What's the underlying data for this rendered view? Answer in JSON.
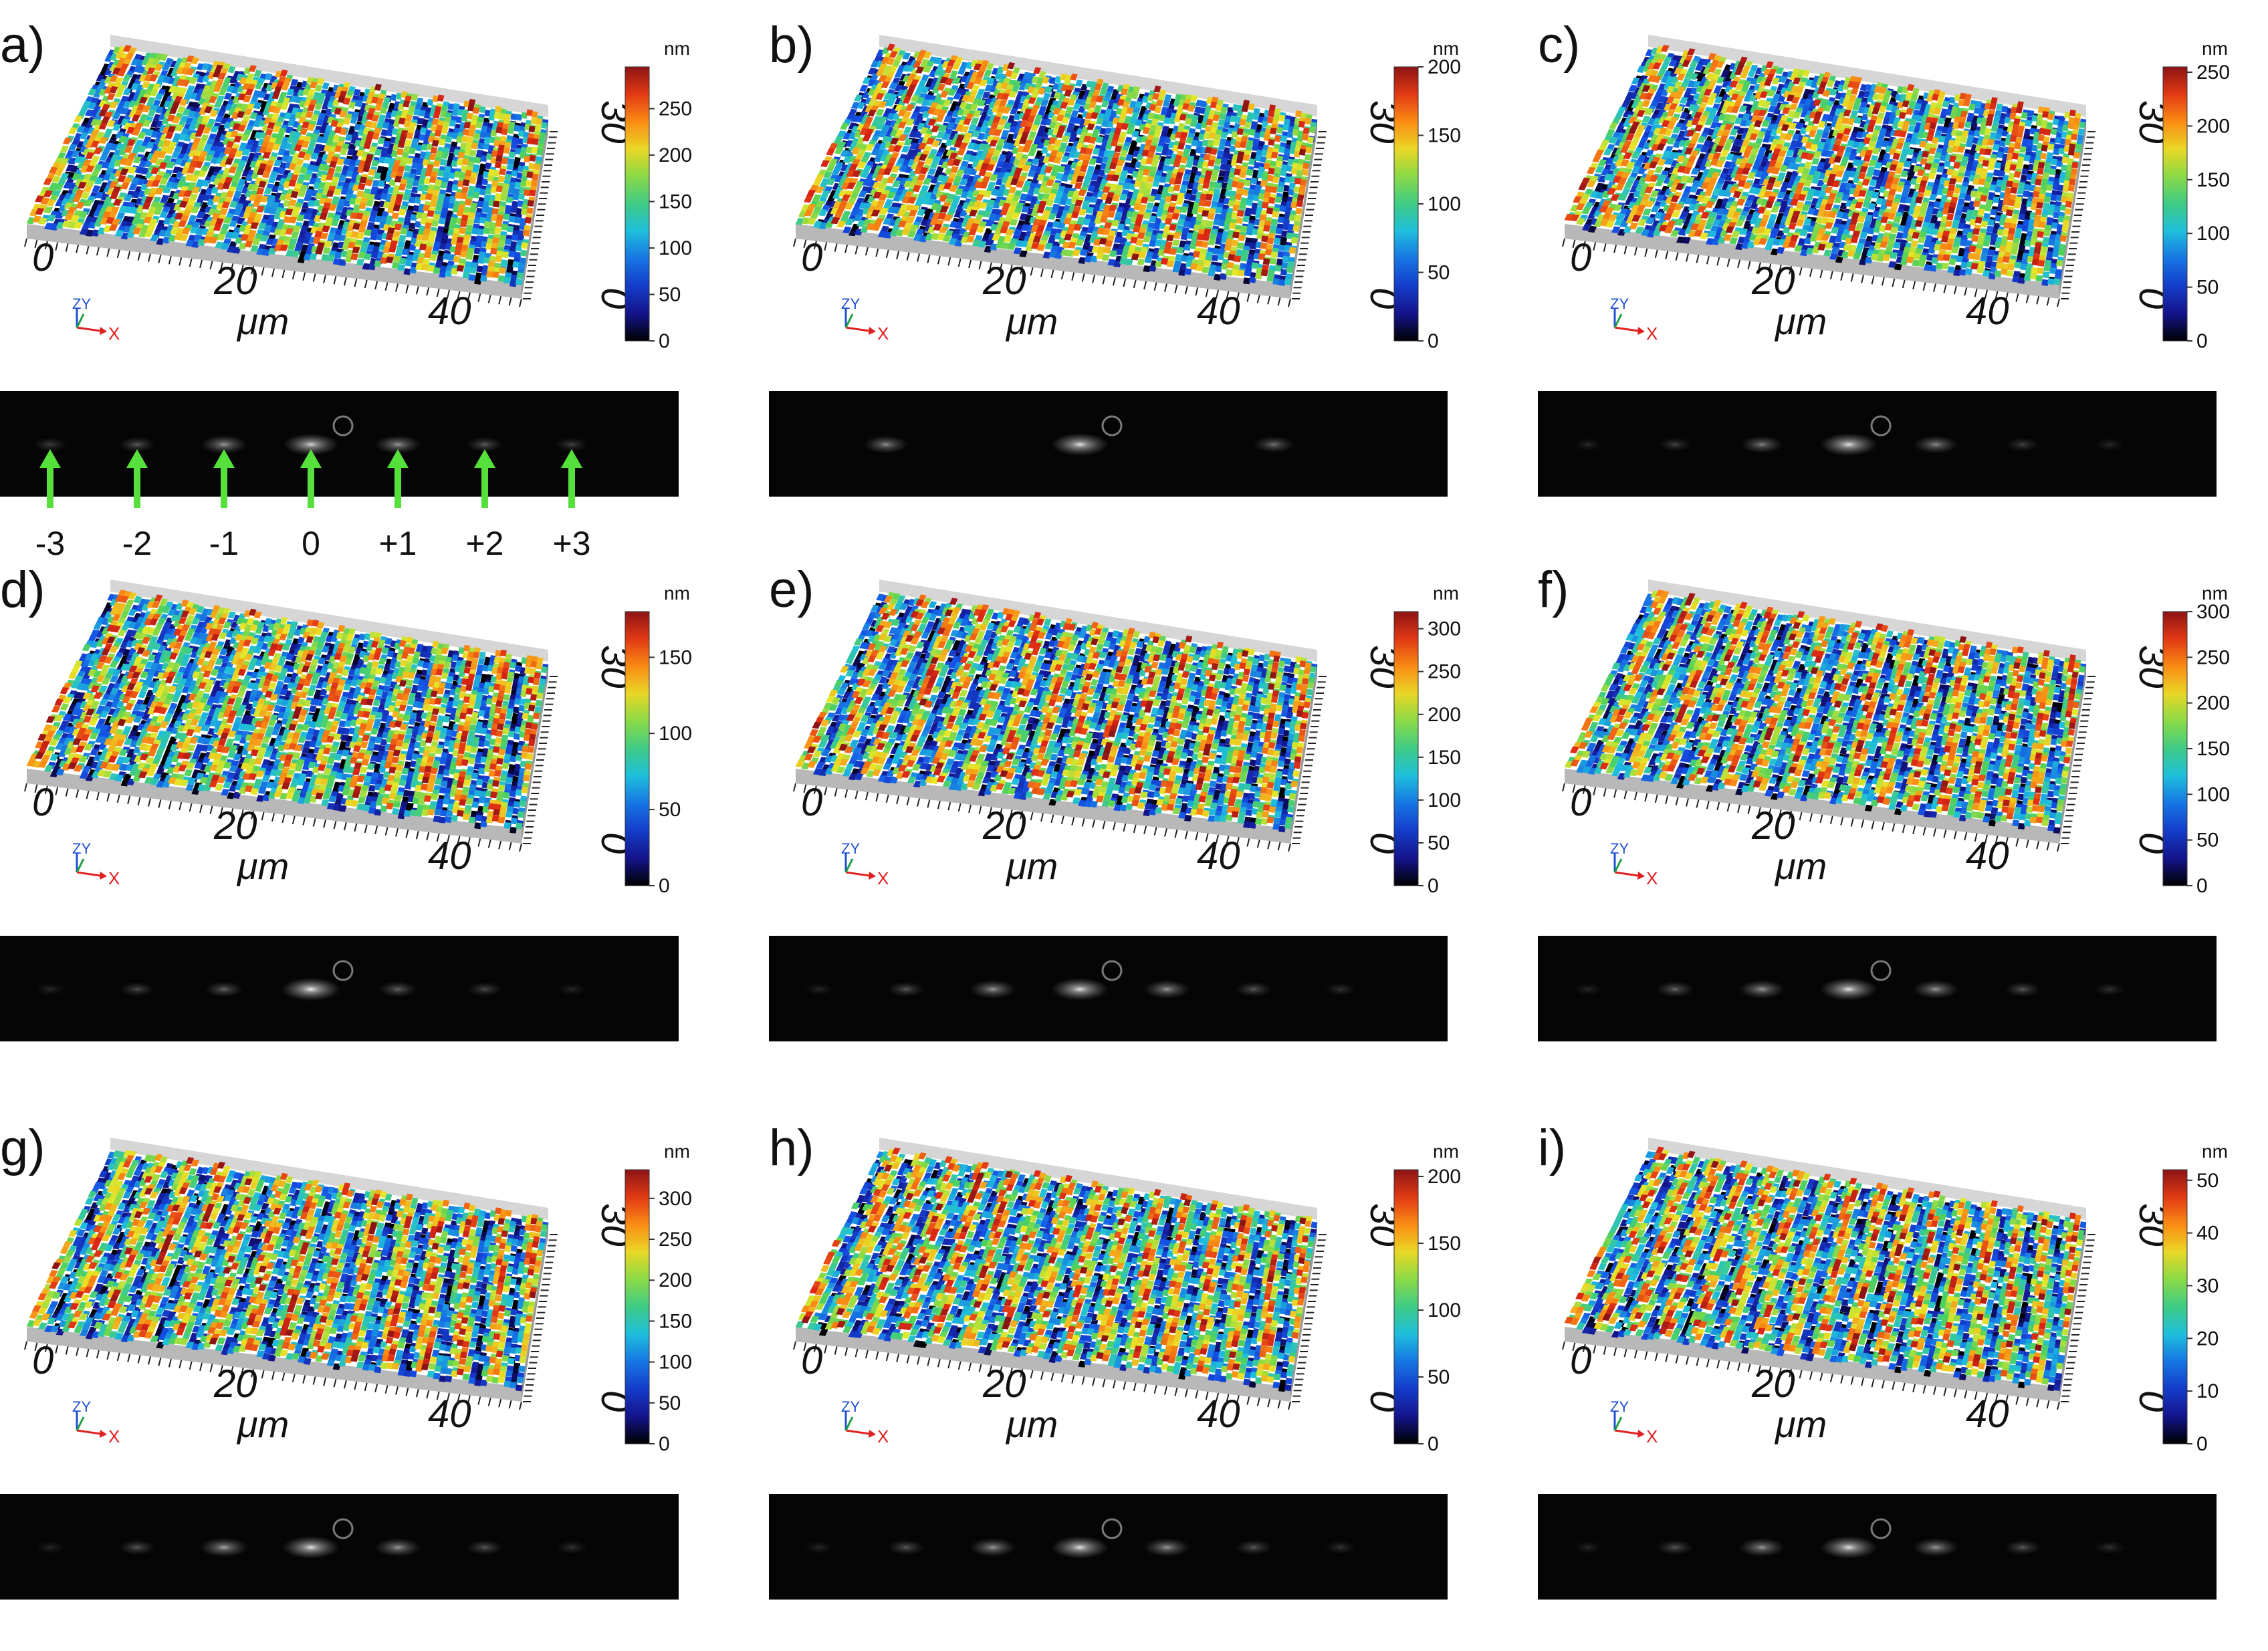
{
  "panels": [
    {
      "letter": "a)",
      "cbar_unit": "nm",
      "cbar_ticks": [
        "250",
        "200",
        "150",
        "100",
        "50",
        "0"
      ],
      "cbar_max": 295,
      "spots": [
        [
          -3,
          0.25
        ],
        [
          -2,
          0.35
        ],
        [
          -1,
          0.6
        ],
        [
          0,
          0.85
        ],
        [
          1,
          0.6
        ],
        [
          2,
          0.35
        ],
        [
          3,
          0.25
        ]
      ]
    },
    {
      "letter": "b)",
      "cbar_unit": "nm",
      "cbar_ticks": [
        "200",
        "150",
        "100",
        "50",
        "0"
      ],
      "cbar_max": 200,
      "spots": [
        [
          -1,
          0.55
        ],
        [
          0,
          0.9
        ],
        [
          1,
          0.45
        ]
      ]
    },
    {
      "letter": "c)",
      "cbar_unit": "nm",
      "cbar_ticks": [
        "250",
        "200",
        "150",
        "100",
        "50",
        "0"
      ],
      "cbar_max": 255,
      "spots": [
        [
          -3,
          0.15
        ],
        [
          -2,
          0.25
        ],
        [
          -1,
          0.5
        ],
        [
          0,
          0.9
        ],
        [
          1,
          0.55
        ],
        [
          2,
          0.25
        ],
        [
          3,
          0.15
        ]
      ]
    },
    {
      "letter": "d)",
      "cbar_unit": "nm",
      "cbar_ticks": [
        "150",
        "100",
        "50",
        "0"
      ],
      "cbar_max": 180,
      "spots": [
        [
          -3,
          0.15
        ],
        [
          -2,
          0.3
        ],
        [
          -1,
          0.4
        ],
        [
          0,
          0.95
        ],
        [
          1,
          0.4
        ],
        [
          2,
          0.3
        ],
        [
          3,
          0.15
        ]
      ]
    },
    {
      "letter": "e)",
      "cbar_unit": "nm",
      "cbar_ticks": [
        "300",
        "250",
        "200",
        "150",
        "100",
        "50",
        "0"
      ],
      "cbar_max": 320,
      "spots": [
        [
          -3,
          0.15
        ],
        [
          -2,
          0.35
        ],
        [
          -1,
          0.6
        ],
        [
          0,
          0.9
        ],
        [
          1,
          0.6
        ],
        [
          2,
          0.35
        ],
        [
          3,
          0.2
        ]
      ]
    },
    {
      "letter": "f)",
      "cbar_unit": "nm",
      "cbar_ticks": [
        "300",
        "250",
        "200",
        "150",
        "100",
        "50",
        "0"
      ],
      "cbar_max": 300,
      "spots": [
        [
          -3,
          0.15
        ],
        [
          -2,
          0.4
        ],
        [
          -1,
          0.6
        ],
        [
          0,
          0.9
        ],
        [
          1,
          0.6
        ],
        [
          2,
          0.35
        ],
        [
          3,
          0.2
        ]
      ]
    },
    {
      "letter": "g)",
      "cbar_unit": "nm",
      "cbar_ticks": [
        "300",
        "250",
        "200",
        "150",
        "100",
        "50",
        "0"
      ],
      "cbar_max": 335,
      "spots": [
        [
          -3,
          0.15
        ],
        [
          -2,
          0.35
        ],
        [
          -1,
          0.65
        ],
        [
          0,
          0.9
        ],
        [
          1,
          0.6
        ],
        [
          2,
          0.35
        ],
        [
          3,
          0.2
        ]
      ]
    },
    {
      "letter": "h)",
      "cbar_unit": "nm",
      "cbar_ticks": [
        "200",
        "150",
        "100",
        "50",
        "0"
      ],
      "cbar_max": 205,
      "spots": [
        [
          -3,
          0.15
        ],
        [
          -2,
          0.35
        ],
        [
          -1,
          0.6
        ],
        [
          0,
          0.9
        ],
        [
          1,
          0.6
        ],
        [
          2,
          0.35
        ],
        [
          3,
          0.2
        ]
      ]
    },
    {
      "letter": "i)",
      "cbar_unit": "nm",
      "cbar_ticks": [
        "50",
        "40",
        "30",
        "20",
        "10",
        "0"
      ],
      "cbar_max": 52,
      "spots": [
        [
          -3,
          0.15
        ],
        [
          -2,
          0.35
        ],
        [
          -1,
          0.6
        ],
        [
          0,
          0.9
        ],
        [
          1,
          0.6
        ],
        [
          2,
          0.35
        ],
        [
          3,
          0.2
        ]
      ]
    }
  ],
  "axis": {
    "x_ticks": [
      "0",
      "20",
      "40"
    ],
    "y_ticks": [
      "0",
      "30"
    ],
    "x_unit": "μm",
    "triad_x": "X",
    "triad_zy": "ZY"
  },
  "orders": [
    "-3",
    "-2",
    "-1",
    "0",
    "+1",
    "+2",
    "+3"
  ],
  "colors": {
    "arrow": "#55e03c",
    "diffraction_bg": "#050505",
    "surface_side": "#b8b8b8"
  }
}
